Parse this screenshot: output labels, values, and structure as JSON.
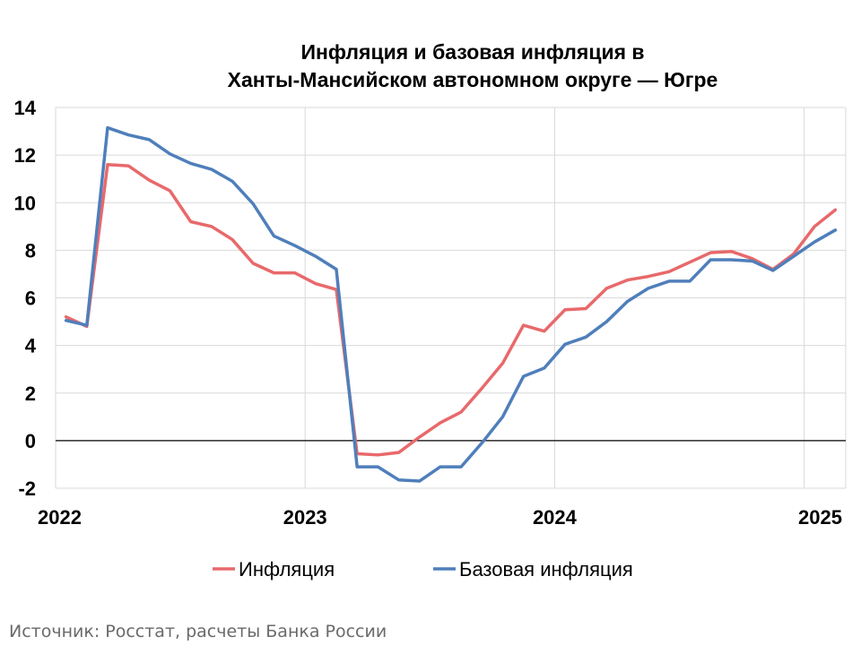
{
  "chart_data": {
    "type": "line",
    "title_lines": [
      "Инфляция и базовая инфляция в",
      "Ханты-Мансийском автономном округе — Югре"
    ],
    "xlabel": "",
    "ylabel": "",
    "ylim": [
      -2,
      14
    ],
    "y_ticks": [
      "-2",
      "0",
      "2",
      "4",
      "6",
      "8",
      "10",
      "12",
      "14"
    ],
    "x_tick_labels": [
      "2022",
      "2023",
      "2024",
      "2025"
    ],
    "x": [
      "2022-01",
      "2022-02",
      "2022-03",
      "2022-04",
      "2022-05",
      "2022-06",
      "2022-07",
      "2022-08",
      "2022-09",
      "2022-10",
      "2022-11",
      "2022-12",
      "2023-01",
      "2023-02",
      "2023-03",
      "2023-04",
      "2023-05",
      "2023-06",
      "2023-07",
      "2023-08",
      "2023-09",
      "2023-10",
      "2023-11",
      "2023-12",
      "2024-01",
      "2024-02",
      "2024-03",
      "2024-04",
      "2024-05",
      "2024-06",
      "2024-07",
      "2024-08",
      "2024-09",
      "2024-10",
      "2024-11",
      "2024-12",
      "2025-01",
      "2025-02"
    ],
    "grid": true,
    "legend_position": "bottom",
    "series": [
      {
        "name": "Инфляция",
        "color": "#e8696b",
        "values": [
          5.2,
          4.8,
          11.6,
          11.55,
          10.95,
          10.5,
          9.2,
          9.0,
          8.45,
          7.45,
          7.05,
          7.05,
          6.6,
          6.35,
          -0.55,
          -0.6,
          -0.5,
          0.15,
          0.75,
          1.2,
          2.2,
          3.25,
          4.85,
          4.6,
          5.5,
          5.55,
          6.4,
          6.75,
          6.9,
          7.1,
          7.5,
          7.9,
          7.95,
          7.65,
          7.2,
          7.85,
          9.0,
          9.7
        ]
      },
      {
        "name": "Базовая инфляция",
        "color": "#4f7fbb",
        "values": [
          5.05,
          4.85,
          13.15,
          12.85,
          12.65,
          12.05,
          11.65,
          11.4,
          10.9,
          9.95,
          8.6,
          8.2,
          7.75,
          7.2,
          -1.1,
          -1.1,
          -1.65,
          -1.7,
          -1.1,
          -1.1,
          -0.1,
          1.0,
          2.7,
          3.05,
          4.05,
          4.35,
          5.0,
          5.85,
          6.4,
          6.7,
          6.7,
          7.6,
          7.6,
          7.55,
          7.15,
          7.75,
          8.35,
          8.85
        ]
      }
    ]
  },
  "source_text": "Источник: Росстат, расчеты Банка России"
}
